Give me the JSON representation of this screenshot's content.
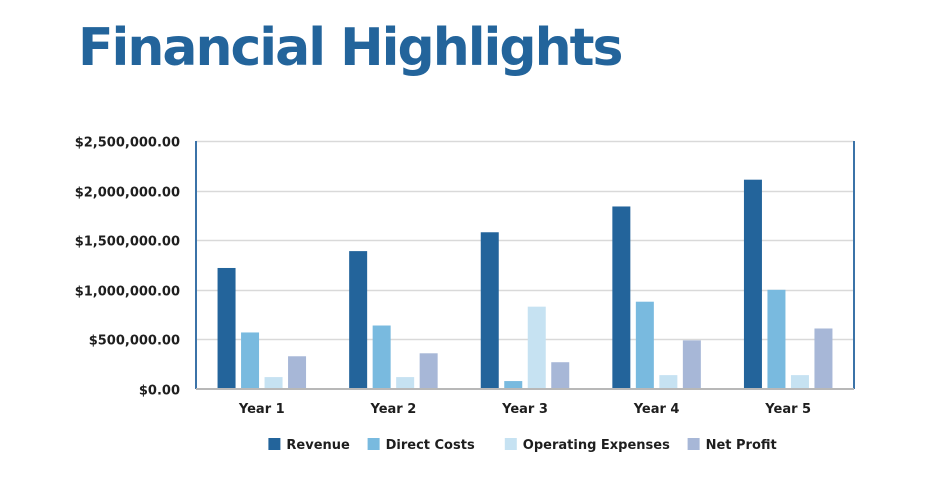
{
  "page": {
    "title": "Financial Highlights"
  },
  "colors": {
    "title": "#23649b",
    "axis": "#3b73a8",
    "grid": "#d9d9d9",
    "text": "#1e1e1e"
  },
  "chart_data": {
    "type": "bar",
    "title": "",
    "xlabel": "",
    "ylabel": "",
    "categories": [
      "Year 1",
      "Year 2",
      "Year 3",
      "Year 4",
      "Year 5"
    ],
    "ylim": [
      0,
      2500000
    ],
    "yticks": [
      0,
      500000,
      1000000,
      1500000,
      2000000,
      2500000
    ],
    "ytick_labels": [
      "$0.00",
      "$500,000.00",
      "$1,000,000.00",
      "$1,500,000.00",
      "$2,000,000.00",
      "$2,500,000.00"
    ],
    "grid": true,
    "legend_position": "bottom",
    "series": [
      {
        "name": "Revenue",
        "color": "#23649b",
        "values": [
          1220000,
          1390000,
          1580000,
          1840000,
          2110000
        ]
      },
      {
        "name": "Direct Costs",
        "color": "#79badf",
        "values": [
          570000,
          640000,
          80000,
          880000,
          1000000
        ]
      },
      {
        "name": "Operating Expenses",
        "color": "#c6e2f2",
        "values": [
          120000,
          120000,
          830000,
          140000,
          140000
        ]
      },
      {
        "name": "Net Profit",
        "color": "#a7b7d7",
        "values": [
          330000,
          360000,
          270000,
          490000,
          610000
        ]
      }
    ]
  }
}
